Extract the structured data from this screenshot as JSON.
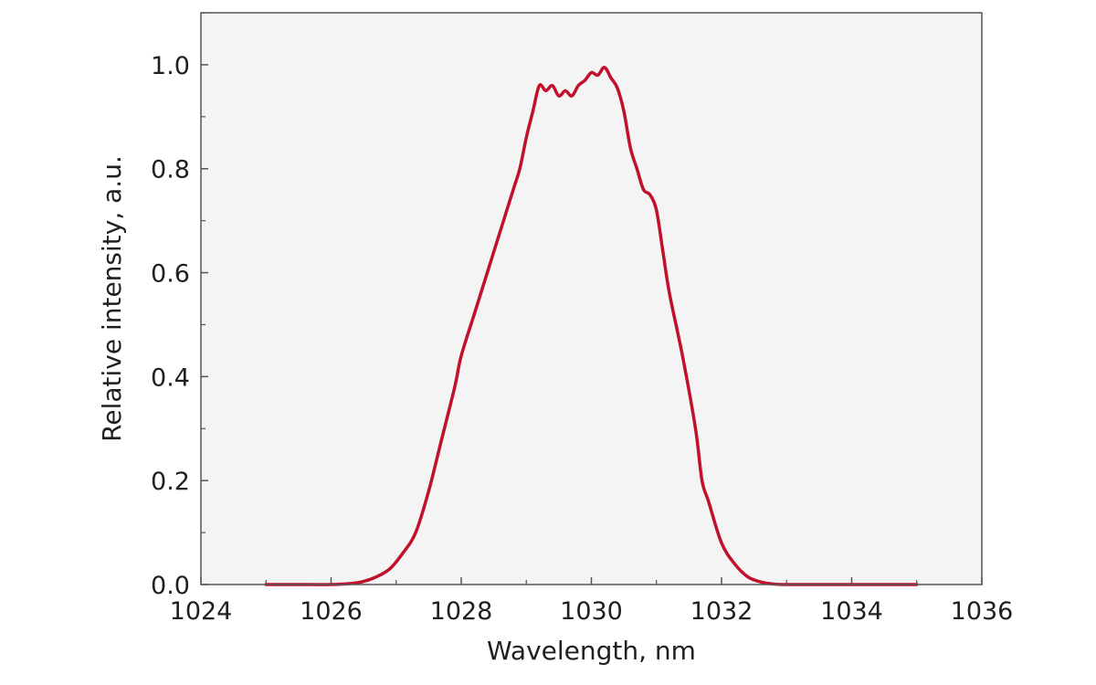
{
  "chart_data": {
    "type": "line",
    "title": "",
    "xlabel": "Wavelength, nm",
    "ylabel": "Relative intensity, a.u.",
    "xlim": [
      1024,
      1036
    ],
    "ylim": [
      0.0,
      1.1
    ],
    "x_ticks": [
      1024,
      1026,
      1028,
      1030,
      1032,
      1034,
      1036
    ],
    "y_ticks": [
      0.0,
      0.2,
      0.4,
      0.6,
      0.8,
      1.0
    ],
    "x_tick_labels": [
      "1024",
      "1026",
      "1028",
      "1030",
      "1032",
      "1034",
      "1036"
    ],
    "y_tick_labels": [
      "0.0",
      "0.2",
      "0.4",
      "0.6",
      "0.8",
      "1.0"
    ],
    "grid": false,
    "legend": "none",
    "plot_background": "#f4f4f4",
    "frame_color": "#555555",
    "series": [
      {
        "color": "#c0102c",
        "x": [
          1025.0,
          1025.5,
          1026.0,
          1026.3,
          1026.5,
          1026.7,
          1026.9,
          1027.1,
          1027.3,
          1027.5,
          1027.7,
          1027.9,
          1028.0,
          1028.2,
          1028.4,
          1028.5,
          1028.6,
          1028.8,
          1028.9,
          1029.0,
          1029.1,
          1029.2,
          1029.3,
          1029.4,
          1029.5,
          1029.6,
          1029.7,
          1029.8,
          1029.9,
          1030.0,
          1030.1,
          1030.2,
          1030.3,
          1030.4,
          1030.5,
          1030.6,
          1030.7,
          1030.8,
          1030.9,
          1031.0,
          1031.1,
          1031.2,
          1031.4,
          1031.6,
          1031.7,
          1031.8,
          1032.0,
          1032.2,
          1032.4,
          1032.6,
          1032.8,
          1033.0,
          1033.3,
          1033.5,
          1034.0,
          1034.5,
          1035.0
        ],
        "y": [
          0.0,
          0.0,
          0.0,
          0.002,
          0.006,
          0.015,
          0.03,
          0.06,
          0.1,
          0.18,
          0.28,
          0.38,
          0.44,
          0.52,
          0.6,
          0.64,
          0.68,
          0.76,
          0.8,
          0.86,
          0.91,
          0.96,
          0.95,
          0.96,
          0.94,
          0.95,
          0.94,
          0.96,
          0.97,
          0.985,
          0.98,
          0.995,
          0.975,
          0.955,
          0.91,
          0.84,
          0.8,
          0.76,
          0.75,
          0.72,
          0.64,
          0.56,
          0.44,
          0.3,
          0.2,
          0.16,
          0.08,
          0.04,
          0.015,
          0.005,
          0.001,
          0.0,
          0.0,
          0.0,
          0.0,
          0.0,
          0.0
        ]
      }
    ]
  }
}
